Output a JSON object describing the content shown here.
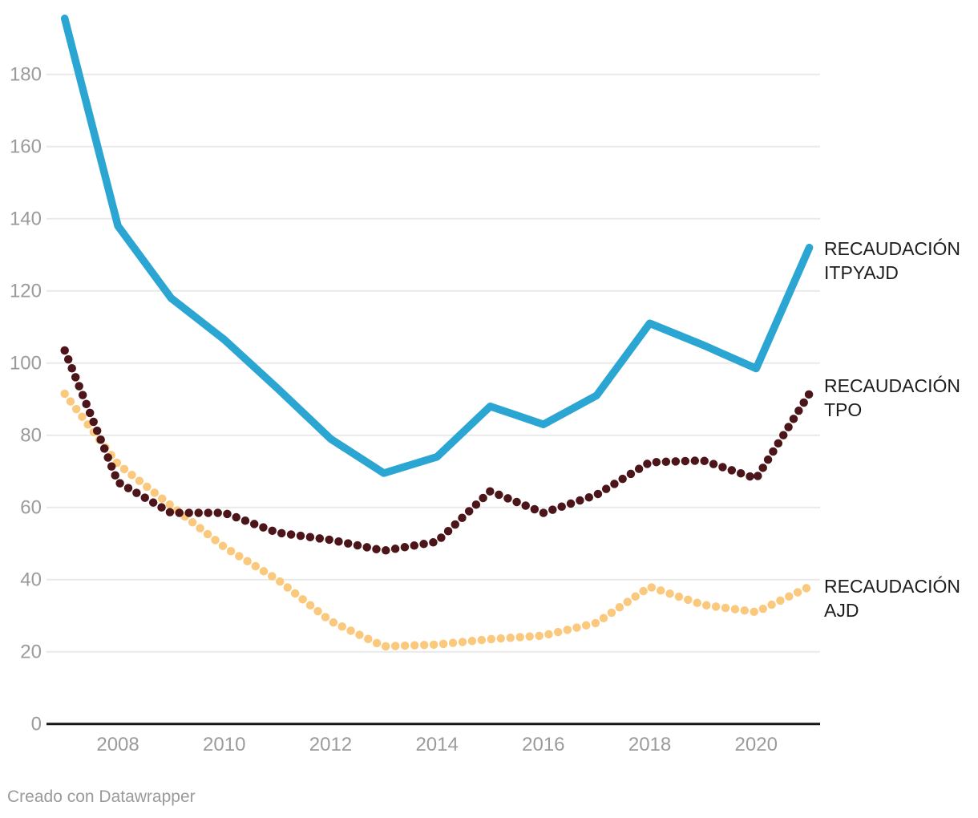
{
  "footer": {
    "credit": "Creado con Datawrapper"
  },
  "chart_data": {
    "type": "line",
    "x": [
      2007,
      2008,
      2009,
      2010,
      2011,
      2012,
      2013,
      2014,
      2015,
      2016,
      2017,
      2018,
      2019,
      2020,
      2021
    ],
    "x_tick_labels": [
      "2008",
      "2010",
      "2012",
      "2014",
      "2016",
      "2018",
      "2020"
    ],
    "y_ticks": [
      0,
      20,
      40,
      60,
      80,
      100,
      120,
      140,
      160,
      180
    ],
    "ylim": [
      0,
      196
    ],
    "grid": "horizontal",
    "legend_position": "right-of-line-end",
    "colors": {
      "itpyajd": "#2ba6d3",
      "tpo": "#4c151a",
      "ajd": "#fbc97e",
      "gridline": "#e9e9e9",
      "axis_line": "#151515",
      "tick_label": "#9b9b9b",
      "series_label": "#1d1d1d"
    },
    "series": [
      {
        "name": "RECAUDACIÓN ITPYAJD",
        "label_lines": [
          "RECAUDACIÓN",
          "ITPYAJD"
        ],
        "style": "solid",
        "color": "#2ba6d3",
        "values": [
          195.5,
          138,
          118,
          106.5,
          93,
          79,
          69.5,
          74,
          88,
          83,
          91,
          111,
          105,
          98.5,
          132
        ]
      },
      {
        "name": "RECAUDACIÓN TPO",
        "label_lines": [
          "RECAUDACIÓN",
          "TPO"
        ],
        "style": "dotted",
        "color": "#4c151a",
        "values": [
          103.5,
          67,
          58.5,
          58.5,
          53,
          51,
          48,
          50.5,
          64.5,
          58.5,
          63.5,
          72.5,
          73,
          68,
          91.5
        ]
      },
      {
        "name": "RECAUDACIÓN AJD",
        "label_lines": [
          "RECAUDACIÓN",
          "AJD"
        ],
        "style": "dotted",
        "color": "#fbc97e",
        "values": [
          91.5,
          72,
          60.5,
          49,
          40,
          28.5,
          21.5,
          22,
          23.5,
          24.5,
          28,
          38,
          33,
          31,
          38
        ]
      }
    ]
  }
}
